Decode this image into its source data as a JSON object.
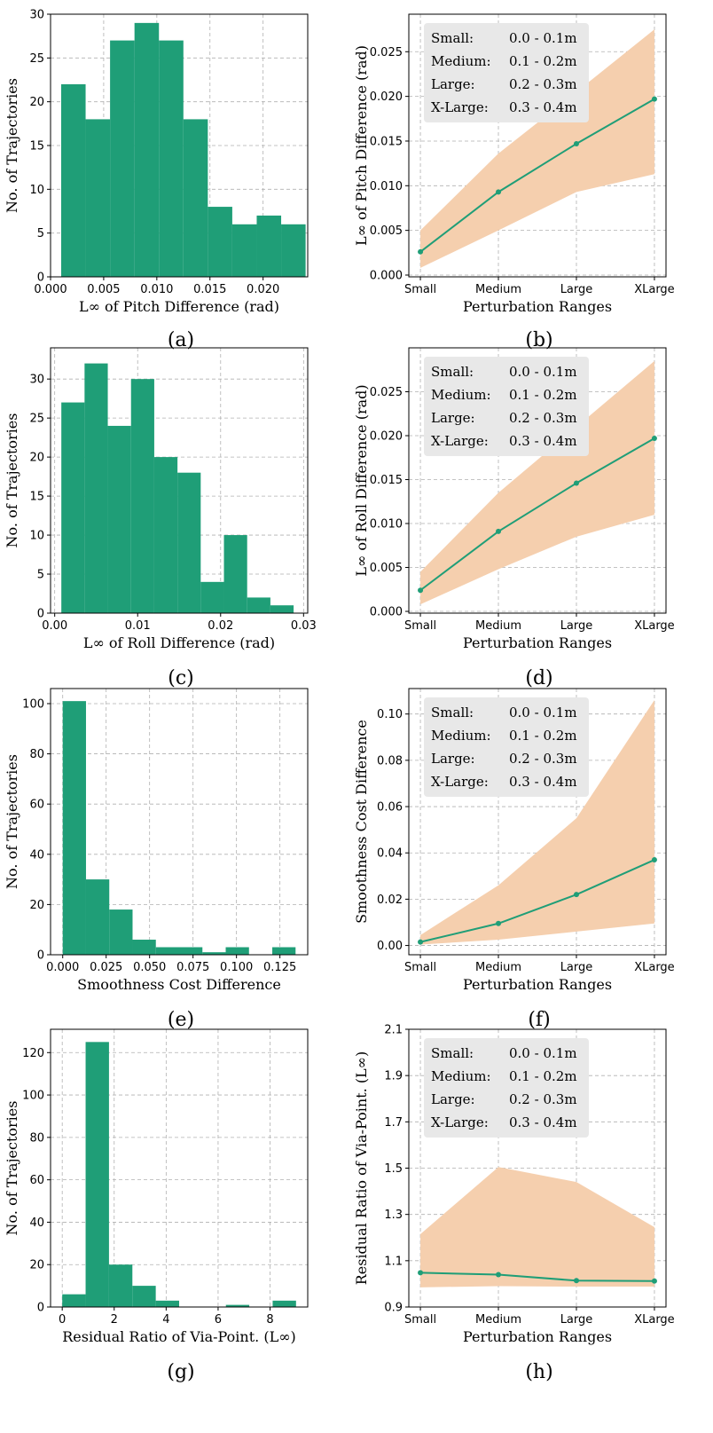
{
  "colors": {
    "bar": "#1f9e77",
    "line": "#1f9e77",
    "band": "#f5cfae",
    "legend_bg": "#e8e8e8"
  },
  "legend": [
    {
      "label": "Small:",
      "range": "0.0 - 0.1m"
    },
    {
      "label": "Medium:",
      "range": "0.1 - 0.2m"
    },
    {
      "label": "Large:",
      "range": "0.2 - 0.3m"
    },
    {
      "label": "X-Large:",
      "range": "0.3 - 0.4m"
    }
  ],
  "chart_data": [
    {
      "id": "a",
      "type": "bar",
      "caption": "(a)",
      "xlabel": "L∞ of Pitch Difference (rad)",
      "ylabel": "No. of Trajectories",
      "bin_edges": [
        0.001,
        0.0033,
        0.0056,
        0.0079,
        0.0102,
        0.0125,
        0.0148,
        0.0171,
        0.0194,
        0.0217,
        0.024
      ],
      "values": [
        22,
        18,
        27,
        29,
        27,
        18,
        8,
        6,
        7,
        6
      ],
      "xlim": [
        0.0,
        0.0242
      ],
      "ylim": [
        0,
        30
      ],
      "xticks": [
        0.0,
        0.005,
        0.01,
        0.015,
        0.02
      ],
      "xtick_labels": [
        "0.000",
        "0.005",
        "0.010",
        "0.015",
        "0.020"
      ],
      "yticks": [
        0,
        5,
        10,
        15,
        20,
        25,
        30
      ],
      "ytick_labels": [
        "0",
        "5",
        "10",
        "15",
        "20",
        "25",
        "30"
      ]
    },
    {
      "id": "b",
      "type": "line",
      "caption": "(b)",
      "xlabel": "Perturbation Ranges",
      "ylabel": "L∞ of Pitch Difference (rad)",
      "categories": [
        "Small",
        "Medium",
        "Large",
        "XLarge"
      ],
      "values": [
        0.0026,
        0.0093,
        0.0147,
        0.0197
      ],
      "lower": [
        0.0008,
        0.005,
        0.0093,
        0.0113
      ],
      "upper": [
        0.005,
        0.0136,
        0.0205,
        0.0275
      ],
      "ylim": [
        -0.0002,
        0.0292
      ],
      "yticks": [
        0.0,
        0.005,
        0.01,
        0.015,
        0.02,
        0.025
      ],
      "ytick_labels": [
        "0.000",
        "0.005",
        "0.010",
        "0.015",
        "0.020",
        "0.025"
      ]
    },
    {
      "id": "c",
      "type": "bar",
      "caption": "(c)",
      "xlabel": "L∞ of Roll Difference (rad)",
      "ylabel": "No. of Trajectories",
      "bin_edges": [
        0.0008,
        0.0036,
        0.0064,
        0.0092,
        0.012,
        0.0148,
        0.0176,
        0.0204,
        0.0232,
        0.026,
        0.0288
      ],
      "values": [
        27,
        32,
        24,
        30,
        20,
        18,
        4,
        10,
        2,
        1
      ],
      "xlim": [
        -0.0005,
        0.0305
      ],
      "ylim": [
        0,
        34
      ],
      "xticks": [
        0.0,
        0.01,
        0.02,
        0.03
      ],
      "xtick_labels": [
        "0.00",
        "0.01",
        "0.02",
        "0.03"
      ],
      "yticks": [
        0,
        5,
        10,
        15,
        20,
        25,
        30
      ],
      "ytick_labels": [
        "0",
        "5",
        "10",
        "15",
        "20",
        "25",
        "30"
      ]
    },
    {
      "id": "d",
      "type": "line",
      "caption": "(d)",
      "xlabel": "Perturbation Ranges",
      "ylabel": "L∞ of Roll Difference (rad)",
      "categories": [
        "Small",
        "Medium",
        "Large",
        "XLarge"
      ],
      "values": [
        0.0024,
        0.0091,
        0.0146,
        0.0197
      ],
      "lower": [
        0.0008,
        0.0048,
        0.0085,
        0.011
      ],
      "upper": [
        0.0045,
        0.0135,
        0.021,
        0.0285
      ],
      "ylim": [
        -0.0002,
        0.03
      ],
      "yticks": [
        0.0,
        0.005,
        0.01,
        0.015,
        0.02,
        0.025
      ],
      "ytick_labels": [
        "0.000",
        "0.005",
        "0.010",
        "0.015",
        "0.020",
        "0.025"
      ]
    },
    {
      "id": "e",
      "type": "bar",
      "caption": "(e)",
      "xlabel": "Smoothness Cost Difference",
      "ylabel": "No. of Trajectories",
      "bin_edges": [
        0.0,
        0.0134,
        0.0268,
        0.0402,
        0.0536,
        0.067,
        0.0804,
        0.0938,
        0.1072,
        0.1206,
        0.134
      ],
      "values": [
        101,
        30,
        18,
        6,
        3,
        3,
        1,
        3,
        0,
        3
      ],
      "xlim": [
        -0.007,
        0.141
      ],
      "ylim": [
        0,
        106
      ],
      "xticks": [
        0.0,
        0.025,
        0.05,
        0.075,
        0.1,
        0.125
      ],
      "xtick_labels": [
        "0.000",
        "0.025",
        "0.050",
        "0.075",
        "0.100",
        "0.125"
      ],
      "yticks": [
        0,
        20,
        40,
        60,
        80,
        100
      ],
      "ytick_labels": [
        "0",
        "20",
        "40",
        "60",
        "80",
        "100"
      ]
    },
    {
      "id": "f",
      "type": "line",
      "caption": "(f)",
      "xlabel": "Perturbation Ranges",
      "ylabel": "Smoothness Cost Difference",
      "categories": [
        "Small",
        "Medium",
        "Large",
        "XLarge"
      ],
      "values": [
        0.0015,
        0.0095,
        0.022,
        0.037
      ],
      "lower": [
        0.0004,
        0.0025,
        0.006,
        0.0095
      ],
      "upper": [
        0.0045,
        0.026,
        0.055,
        0.106
      ],
      "ylim": [
        -0.004,
        0.111
      ],
      "yticks": [
        0.0,
        0.02,
        0.04,
        0.06,
        0.08,
        0.1
      ],
      "ytick_labels": [
        "0.00",
        "0.02",
        "0.04",
        "0.06",
        "0.08",
        "0.10"
      ]
    },
    {
      "id": "g",
      "type": "bar",
      "caption": "(g)",
      "xlabel": "Residual Ratio of Via-Point. (L∞)",
      "ylabel": "No. of Trajectories",
      "bin_edges": [
        0.0,
        0.9,
        1.8,
        2.7,
        3.6,
        4.5,
        5.4,
        6.3,
        7.2,
        8.1,
        9.0
      ],
      "values": [
        6,
        125,
        20,
        10,
        3,
        0,
        0,
        1,
        0,
        3
      ],
      "xlim": [
        -0.45,
        9.45
      ],
      "ylim": [
        0,
        131
      ],
      "xticks": [
        0,
        2,
        4,
        6,
        8
      ],
      "xtick_labels": [
        "0",
        "2",
        "4",
        "6",
        "8"
      ],
      "yticks": [
        0,
        20,
        40,
        60,
        80,
        100,
        120
      ],
      "ytick_labels": [
        "0",
        "20",
        "40",
        "60",
        "80",
        "100",
        "120"
      ]
    },
    {
      "id": "h",
      "type": "line",
      "caption": "(h)",
      "xlabel": "Perturbation Ranges",
      "ylabel": "Residual Ratio of Via-Point. (L∞)",
      "categories": [
        "Small",
        "Medium",
        "Large",
        "XLarge"
      ],
      "values": [
        1.048,
        1.04,
        1.014,
        1.012
      ],
      "lower": [
        0.985,
        0.99,
        0.988,
        0.988
      ],
      "upper": [
        1.215,
        1.505,
        1.44,
        1.245
      ],
      "ylim": [
        0.9,
        2.1
      ],
      "yticks": [
        0.9,
        1.1,
        1.3,
        1.5,
        1.7,
        1.9,
        2.1
      ],
      "ytick_labels": [
        "0.9",
        "1.1",
        "1.3",
        "1.5",
        "1.7",
        "1.9",
        "2.1"
      ]
    }
  ]
}
